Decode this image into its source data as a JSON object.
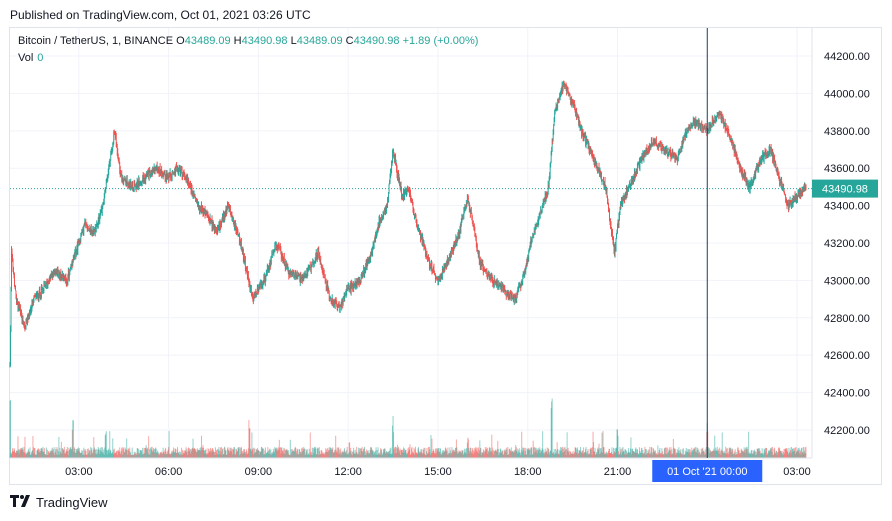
{
  "published": "Published on TradingView.com, Oct 01, 2021 03:26 UTC",
  "legend": {
    "symbol": "Bitcoin / TetherUS, 1, BINANCE",
    "o_label": "O",
    "o_value": "43489.09",
    "h_label": "H",
    "h_value": "43490.98",
    "l_label": "L",
    "l_value": "43489.09",
    "c_label": "C",
    "c_value": "43490.98",
    "change": "+1.89 (+0.00%)"
  },
  "volume_legend": {
    "label": "Vol",
    "value": "0"
  },
  "footer": {
    "logo_text": "TradingView"
  },
  "colors": {
    "up": "#26a69a",
    "down": "#ef5350",
    "accent": "#2962ff",
    "grid": "#f0f3fa"
  },
  "chart_data": {
    "type": "candlestick",
    "price_axis": {
      "ticks": [
        44200,
        44000,
        43800,
        43600,
        43400,
        43200,
        43000,
        42800,
        42600,
        42400,
        42200
      ],
      "tick_labels": [
        "44200.00",
        "44000.00",
        "43800.00",
        "43600.00",
        "43400.00",
        "43200.00",
        "43000.00",
        "42800.00",
        "42600.00",
        "42400.00",
        "42200.00"
      ],
      "range": [
        42050,
        44350
      ]
    },
    "time_axis": {
      "labels": [
        "03:00",
        "06:00",
        "09:00",
        "12:00",
        "15:00",
        "18:00",
        "21:00",
        "03:00"
      ],
      "hours": [
        3,
        6,
        9,
        12,
        15,
        18,
        21,
        27
      ],
      "range": [
        0.7,
        27.5
      ]
    },
    "crosshair": {
      "hour": 24,
      "label": "01 Oct '21   00:00"
    },
    "last_price": {
      "value": 43490.98,
      "label": "43490.98"
    },
    "close_path": [
      [
        0.7,
        42550
      ],
      [
        0.75,
        43150
      ],
      [
        0.9,
        42900
      ],
      [
        1.2,
        42750
      ],
      [
        1.5,
        42900
      ],
      [
        1.8,
        42950
      ],
      [
        2.2,
        43050
      ],
      [
        2.6,
        43000
      ],
      [
        3.0,
        43200
      ],
      [
        3.2,
        43300
      ],
      [
        3.5,
        43250
      ],
      [
        3.8,
        43400
      ],
      [
        4.0,
        43600
      ],
      [
        4.2,
        43800
      ],
      [
        4.4,
        43550
      ],
      [
        4.8,
        43500
      ],
      [
        5.2,
        43550
      ],
      [
        5.6,
        43600
      ],
      [
        6.0,
        43550
      ],
      [
        6.3,
        43600
      ],
      [
        6.6,
        43550
      ],
      [
        7.0,
        43400
      ],
      [
        7.3,
        43350
      ],
      [
        7.6,
        43250
      ],
      [
        8.0,
        43400
      ],
      [
        8.4,
        43200
      ],
      [
        8.8,
        42900
      ],
      [
        9.2,
        43000
      ],
      [
        9.6,
        43200
      ],
      [
        10.0,
        43050
      ],
      [
        10.5,
        43000
      ],
      [
        11.0,
        43150
      ],
      [
        11.4,
        42900
      ],
      [
        11.7,
        42850
      ],
      [
        12.0,
        42950
      ],
      [
        12.4,
        43000
      ],
      [
        12.8,
        43150
      ],
      [
        13.0,
        43300
      ],
      [
        13.3,
        43400
      ],
      [
        13.5,
        43700
      ],
      [
        13.8,
        43450
      ],
      [
        14.0,
        43500
      ],
      [
        14.3,
        43300
      ],
      [
        14.7,
        43100
      ],
      [
        15.0,
        43000
      ],
      [
        15.3,
        43100
      ],
      [
        15.7,
        43250
      ],
      [
        16.0,
        43450
      ],
      [
        16.4,
        43100
      ],
      [
        16.8,
        43000
      ],
      [
        17.2,
        42950
      ],
      [
        17.6,
        42900
      ],
      [
        17.9,
        43050
      ],
      [
        18.1,
        43200
      ],
      [
        18.4,
        43350
      ],
      [
        18.7,
        43500
      ],
      [
        18.9,
        43900
      ],
      [
        19.2,
        44050
      ],
      [
        19.5,
        43950
      ],
      [
        19.8,
        43800
      ],
      [
        20.2,
        43650
      ],
      [
        20.6,
        43500
      ],
      [
        20.9,
        43150
      ],
      [
        21.1,
        43400
      ],
      [
        21.4,
        43500
      ],
      [
        21.8,
        43650
      ],
      [
        22.2,
        43750
      ],
      [
        22.6,
        43700
      ],
      [
        23.0,
        43650
      ],
      [
        23.3,
        43800
      ],
      [
        23.6,
        43850
      ],
      [
        24.0,
        43800
      ],
      [
        24.4,
        43900
      ],
      [
        24.8,
        43750
      ],
      [
        25.1,
        43600
      ],
      [
        25.4,
        43500
      ],
      [
        25.8,
        43650
      ],
      [
        26.1,
        43700
      ],
      [
        26.4,
        43550
      ],
      [
        26.7,
        43400
      ],
      [
        27.0,
        43450
      ],
      [
        27.3,
        43490.98
      ]
    ],
    "volume_spikes": [
      {
        "hour": 0.7,
        "rel": 0.9
      },
      {
        "hour": 2.8,
        "rel": 0.55
      },
      {
        "hour": 3.9,
        "rel": 0.4
      },
      {
        "hour": 8.7,
        "rel": 0.55
      },
      {
        "hour": 13.5,
        "rel": 0.6
      },
      {
        "hour": 16.0,
        "rel": 0.3
      },
      {
        "hour": 18.8,
        "rel": 0.85
      },
      {
        "hour": 21.0,
        "rel": 0.45
      },
      {
        "hour": 24.0,
        "rel": 0.5
      }
    ]
  }
}
